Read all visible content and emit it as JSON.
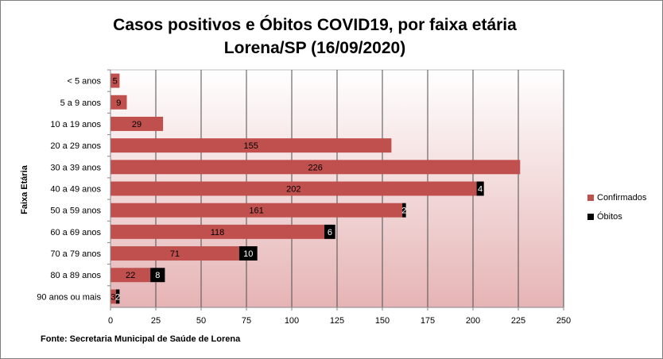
{
  "chart_data": {
    "type": "bar",
    "orientation": "horizontal",
    "stacked": true,
    "title": "Casos positivos e Óbitos COVID19, por faixa etária",
    "subtitle": "Lorena/SP (16/09/2020)",
    "ylabel": "Faixa Etária",
    "xlabel": "",
    "categories": [
      "< 5 anos",
      "5 a 9 anos",
      "10 a 19 anos",
      "20 a 29 anos",
      "30 a 39 anos",
      "40 a 49 anos",
      "50 a 59 anos",
      "60 a 69 anos",
      "70 a 79 anos",
      "80 a 89 anos",
      "90 anos ou mais"
    ],
    "series": [
      {
        "name": "Confirmados",
        "color": "#c0504d",
        "values": [
          5,
          9,
          29,
          155,
          226,
          202,
          161,
          118,
          71,
          22,
          3
        ]
      },
      {
        "name": "Óbitos",
        "color": "#000000",
        "values": [
          null,
          null,
          null,
          null,
          null,
          4,
          2,
          6,
          10,
          8,
          2
        ]
      }
    ],
    "xlim": [
      0,
      250
    ],
    "xticks": [
      0,
      25,
      50,
      75,
      100,
      125,
      150,
      175,
      200,
      225,
      250
    ],
    "grid": true,
    "legend_position": "right",
    "background_gradient": [
      "#ffffff",
      "#e6b4b5"
    ]
  },
  "source": "Fonte: Secretaria Municipal  de Saúde de Lorena"
}
